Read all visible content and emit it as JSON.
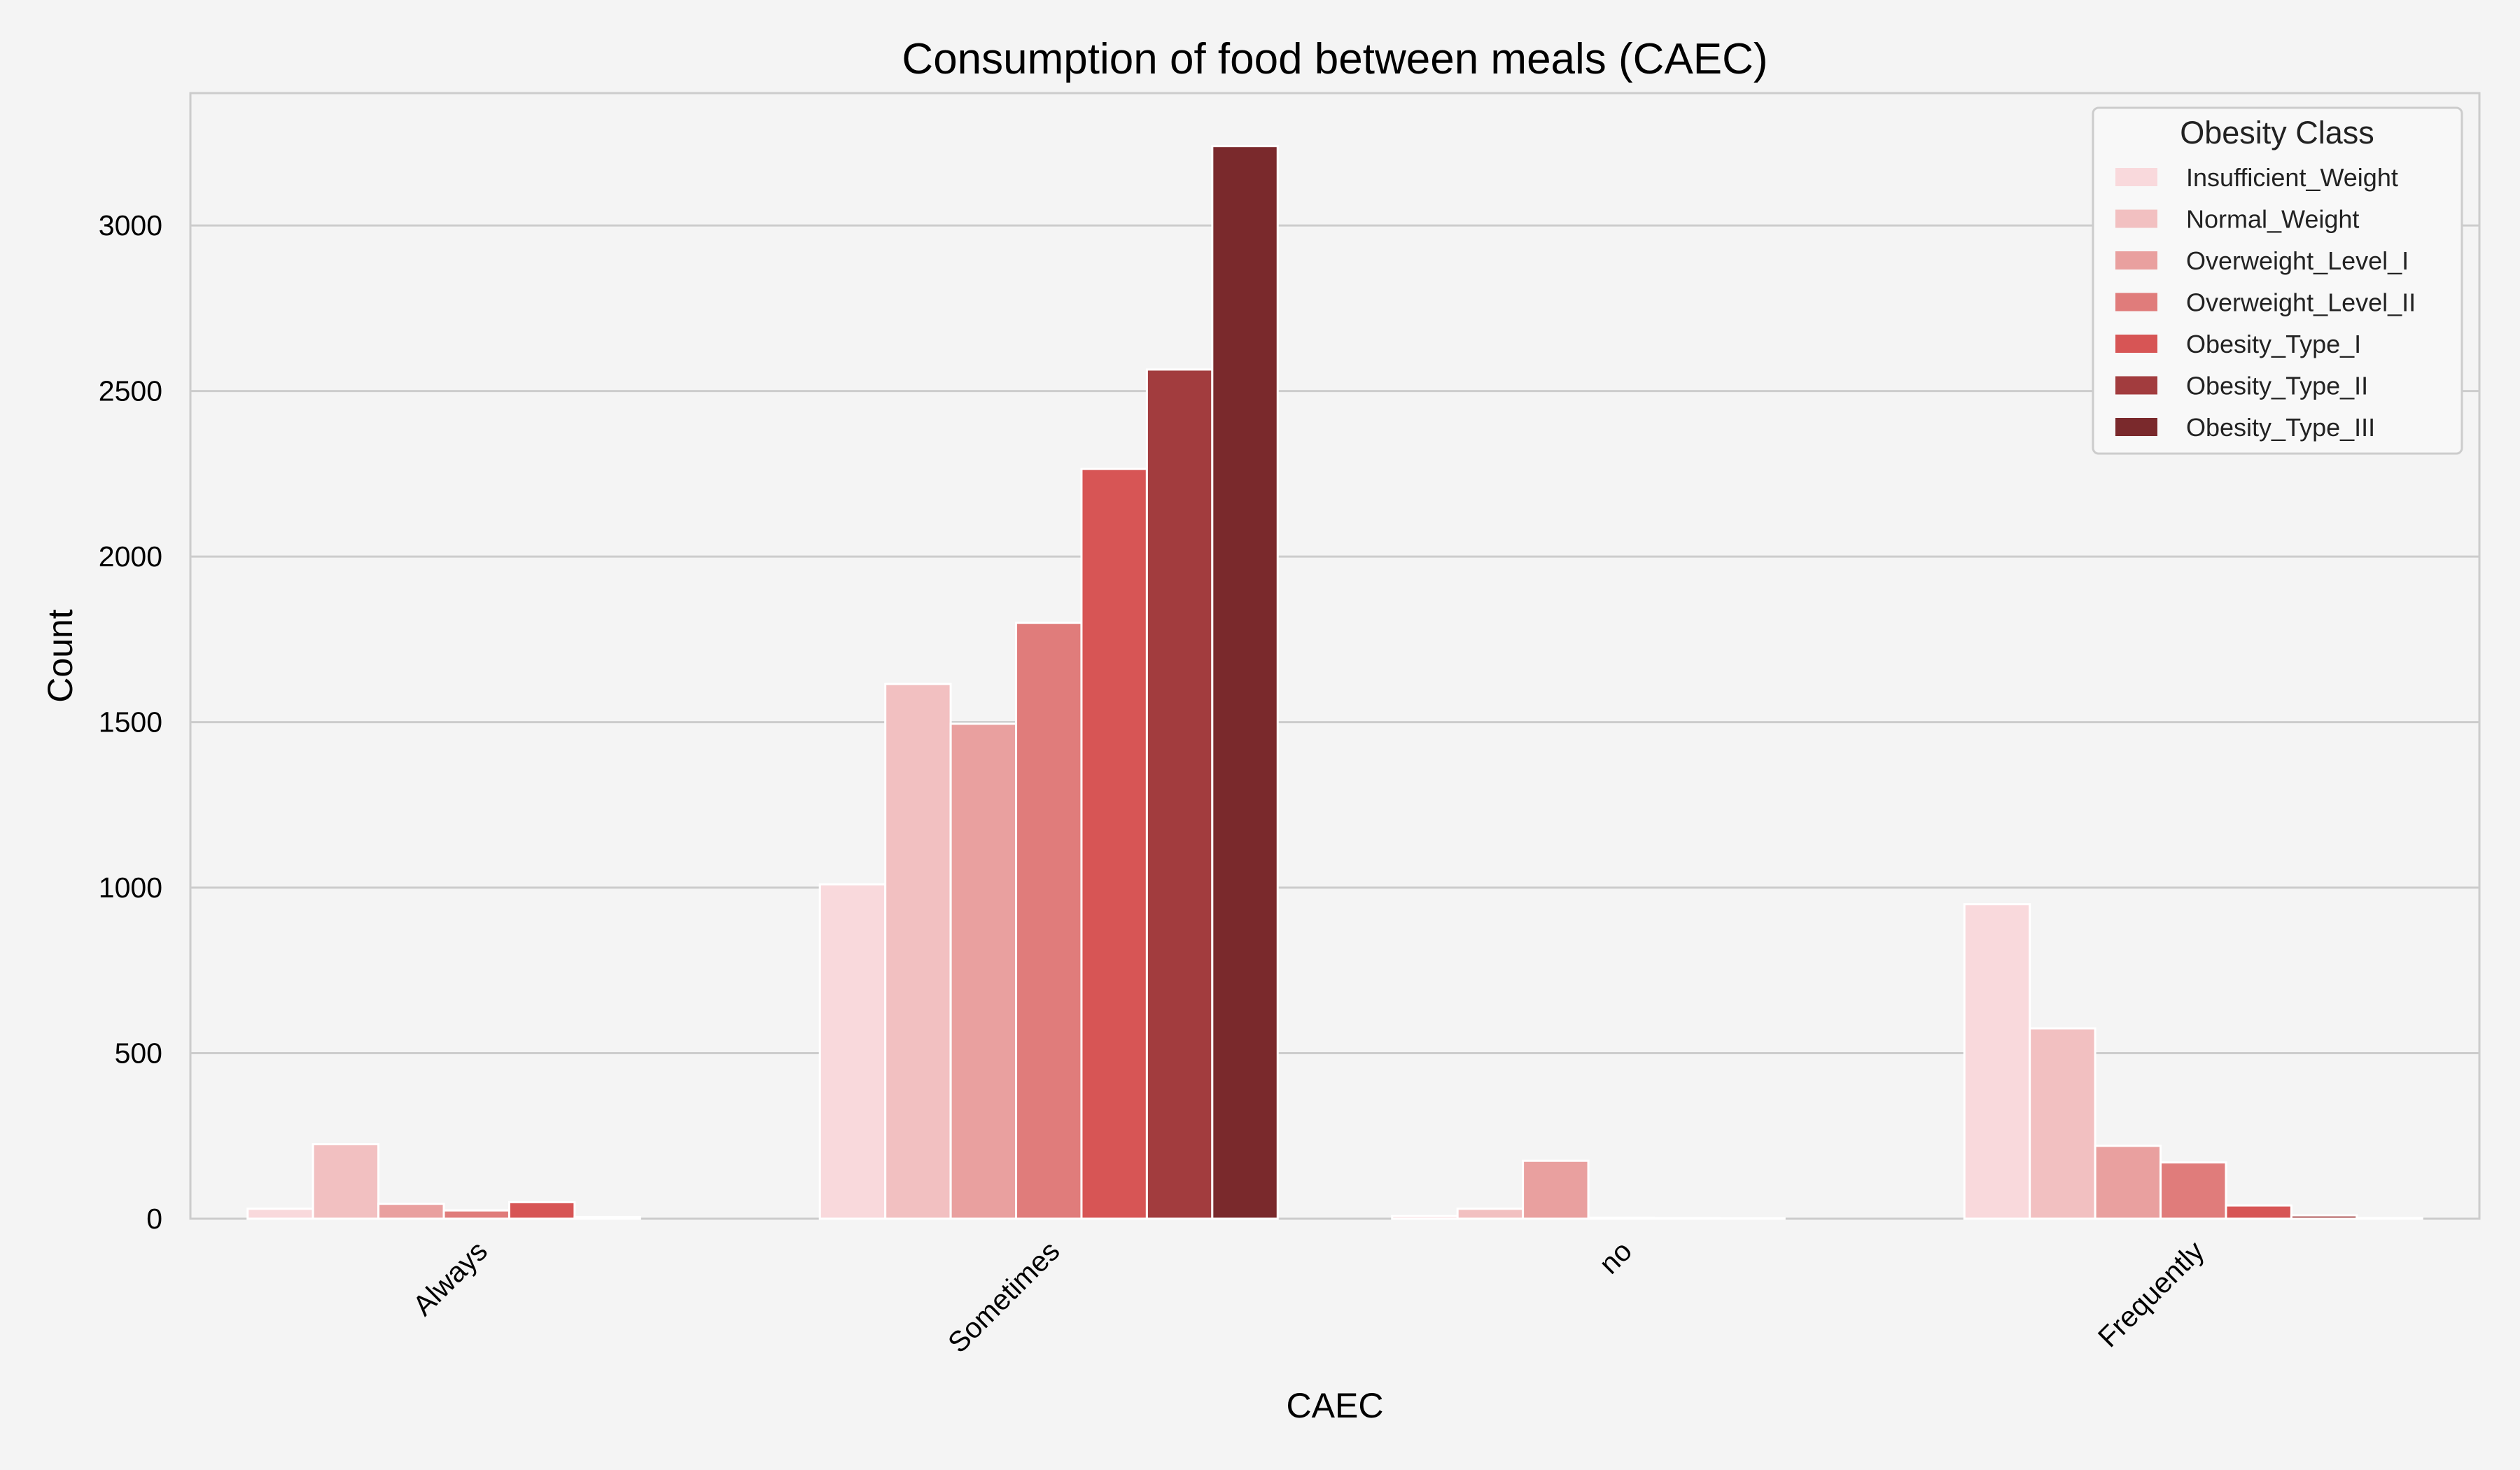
{
  "chart_data": {
    "type": "bar",
    "title": "Consumption of food between meals (CAEC)",
    "xlabel": "CAEC",
    "ylabel": "Count",
    "ylim": [
      0,
      3400
    ],
    "yticks": [
      0,
      500,
      1000,
      1500,
      2000,
      2500,
      3000
    ],
    "grid": true,
    "legend_position": "top-right",
    "legend_title": "Obesity Class",
    "categories": [
      "Always",
      "Sometimes",
      "no",
      "Frequently"
    ],
    "series": [
      {
        "name": "Insufficient_Weight",
        "color": "#f9d9dc",
        "values": [
          30,
          1010,
          8,
          950
        ]
      },
      {
        "name": "Normal_Weight",
        "color": "#f2c0c1",
        "values": [
          225,
          1615,
          30,
          575
        ]
      },
      {
        "name": "Overweight_Level_I",
        "color": "#e9a09f",
        "values": [
          45,
          1495,
          175,
          220
        ]
      },
      {
        "name": "Overweight_Level_II",
        "color": "#e07c7b",
        "values": [
          25,
          1800,
          3,
          170
        ]
      },
      {
        "name": "Obesity_Type_I",
        "color": "#d75555",
        "values": [
          50,
          2265,
          2,
          40
        ]
      },
      {
        "name": "Obesity_Type_II",
        "color": "#a23c3e",
        "values": [
          5,
          2565,
          1,
          10
        ]
      },
      {
        "name": "Obesity_Type_III",
        "color": "#7a292c",
        "values": [
          0,
          3240,
          0,
          2
        ]
      }
    ]
  }
}
